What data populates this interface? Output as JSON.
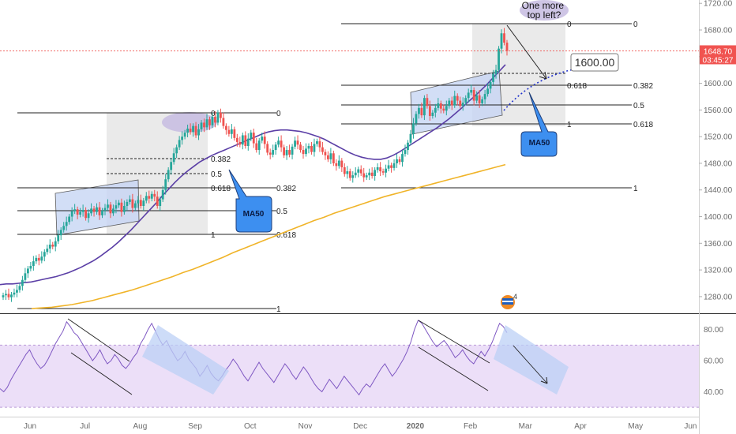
{
  "chart_data": {
    "type": "candlestick",
    "price_axis": {
      "range": [
        1255,
        1725
      ],
      "ticks": [
        "1720.00",
        "1680.00",
        "1640.00",
        "1600.00",
        "1560.00",
        "1520.00",
        "1480.00",
        "1440.00",
        "1400.00",
        "1360.00",
        "1320.00",
        "1280.00"
      ],
      "current_price": "1648.70",
      "countdown": "03:45:27"
    },
    "rsi_axis": {
      "range": [
        24,
        90
      ],
      "ticks": [
        "80.00",
        "60.00",
        "40.00"
      ],
      "band": [
        30,
        70
      ]
    },
    "time_axis": {
      "labels": [
        "Jun",
        "Jul",
        "Aug",
        "Sep",
        "Oct",
        "Nov",
        "Dec",
        "2020",
        "Feb",
        "Mar",
        "Apr",
        "May",
        "Jun"
      ],
      "bold": [
        "2020"
      ]
    },
    "candles_close": [
      1282,
      1284,
      1279,
      1283,
      1286,
      1290,
      1296,
      1305,
      1315,
      1322,
      1326,
      1333,
      1338,
      1334,
      1340,
      1347,
      1352,
      1358,
      1355,
      1363,
      1372,
      1380,
      1386,
      1392,
      1400,
      1408,
      1411,
      1403,
      1407,
      1410,
      1398,
      1405,
      1412,
      1407,
      1414,
      1402,
      1409,
      1413,
      1418,
      1405,
      1412,
      1417,
      1421,
      1407,
      1416,
      1422,
      1426,
      1413,
      1420,
      1425,
      1416,
      1424,
      1431,
      1427,
      1434,
      1430,
      1416,
      1426,
      1440,
      1456,
      1470,
      1482,
      1495,
      1504,
      1515,
      1520,
      1526,
      1532,
      1527,
      1536,
      1522,
      1531,
      1541,
      1534,
      1546,
      1537,
      1550,
      1541,
      1556,
      1548,
      1536,
      1530,
      1524,
      1531,
      1518,
      1512,
      1508,
      1522,
      1506,
      1517,
      1526,
      1510,
      1500,
      1514,
      1520,
      1509,
      1496,
      1493,
      1500,
      1508,
      1514,
      1504,
      1492,
      1500,
      1493,
      1505,
      1514,
      1508,
      1500,
      1494,
      1502,
      1506,
      1497,
      1509,
      1513,
      1504,
      1497,
      1492,
      1486,
      1495,
      1480,
      1476,
      1484,
      1474,
      1464,
      1468,
      1458,
      1462,
      1466,
      1471,
      1465,
      1459,
      1462,
      1466,
      1461,
      1470,
      1474,
      1468,
      1466,
      1472,
      1477,
      1473,
      1480,
      1486,
      1482,
      1494,
      1500,
      1511,
      1524,
      1540,
      1554,
      1563,
      1552,
      1578,
      1566,
      1551,
      1556,
      1563,
      1570,
      1562,
      1559,
      1566,
      1574,
      1567,
      1581,
      1574,
      1566,
      1571,
      1578,
      1586,
      1590,
      1574,
      1582,
      1570,
      1576,
      1584,
      1592,
      1602,
      1614,
      1620,
      1652,
      1675,
      1661,
      1648.7
    ],
    "ma50": [
      1298,
      1299,
      1299,
      1300,
      1301,
      1302,
      1304,
      1306,
      1308,
      1310,
      1313,
      1316,
      1320,
      1324,
      1329,
      1334,
      1340,
      1347,
      1354,
      1362,
      1371,
      1380,
      1390,
      1400,
      1410,
      1420,
      1431,
      1441,
      1451,
      1460,
      1468,
      1475,
      1482,
      1487,
      1492,
      1496,
      1500,
      1504,
      1508,
      1512,
      1516,
      1520,
      1524,
      1527,
      1529,
      1530,
      1530,
      1529,
      1528,
      1526,
      1523,
      1520,
      1516,
      1511,
      1506,
      1501,
      1496,
      1492,
      1489,
      1487,
      1486,
      1486,
      1488,
      1492,
      1497,
      1503,
      1509,
      1515,
      1521,
      1527,
      1533,
      1540,
      1547,
      1555,
      1563,
      1572,
      1580,
      1589,
      1598,
      1608,
      1618,
      1628
    ],
    "ma200": [
      1262,
      1263,
      1264,
      1266,
      1268,
      1271,
      1274,
      1278,
      1282,
      1286,
      1290,
      1295,
      1300,
      1305,
      1310,
      1316,
      1321,
      1327,
      1333,
      1339,
      1346,
      1352,
      1358,
      1364,
      1370,
      1376,
      1382,
      1388,
      1394,
      1399,
      1405,
      1410,
      1415,
      1420,
      1425,
      1430,
      1434,
      1438,
      1442,
      1446,
      1450,
      1454,
      1458,
      1462,
      1466,
      1470,
      1474,
      1478
    ],
    "rsi": [
      42,
      40,
      43,
      48,
      52,
      56,
      60,
      64,
      67,
      62,
      58,
      55,
      57,
      61,
      66,
      71,
      75,
      79,
      85,
      82,
      78,
      76,
      72,
      68,
      64,
      60,
      63,
      67,
      62,
      58,
      60,
      64,
      61,
      57,
      55,
      58,
      62,
      65,
      71,
      75,
      80,
      84,
      79,
      74,
      70,
      73,
      68,
      64,
      60,
      62,
      66,
      61,
      58,
      55,
      50,
      53,
      57,
      52,
      49,
      47,
      50,
      54,
      57,
      61,
      58,
      54,
      50,
      47,
      51,
      55,
      59,
      55,
      52,
      49,
      46,
      50,
      54,
      58,
      55,
      51,
      48,
      52,
      56,
      53,
      49,
      45,
      42,
      40,
      44,
      48,
      45,
      42,
      46,
      50,
      47,
      44,
      41,
      38,
      42,
      45,
      43,
      47,
      51,
      55,
      58,
      54,
      50,
      53,
      57,
      61,
      66,
      72,
      80,
      86,
      84,
      80,
      76,
      72,
      69,
      71,
      73,
      70,
      66,
      62,
      64,
      67,
      63,
      60,
      58,
      62,
      66,
      63,
      67,
      72,
      78,
      84,
      82,
      78
    ],
    "fib_sets": [
      {
        "levels": [
          "0",
          "0.382",
          "0.5",
          "0.618",
          "1"
        ]
      },
      {
        "levels": [
          "0",
          "0.382",
          "0.5",
          "0.618",
          "1"
        ]
      },
      {
        "levels": [
          "0",
          "0.382",
          "0.5",
          "0.618",
          "1"
        ]
      },
      {
        "levels": [
          "0",
          "0.618",
          "1"
        ]
      }
    ],
    "annotations": {
      "callout_top": "One more top left?",
      "price_target": "1600.00",
      "ma50_label_1": "MA50",
      "ma50_label_2": "MA50",
      "event_badge": "4"
    },
    "colors": {
      "up": "#26a69a",
      "down": "#ef5350",
      "ma50": "#5b3fa6",
      "ma200": "#f0b429",
      "rsi": "#7e57c2",
      "rsi_band": "#ecdff8",
      "callout_fill": "#3d8ff0",
      "price_tag": "#f05350",
      "channel_fill": "#c8d6f5",
      "fib_box": "#e6e6e6",
      "ellipse": "#c9bfe2"
    }
  }
}
